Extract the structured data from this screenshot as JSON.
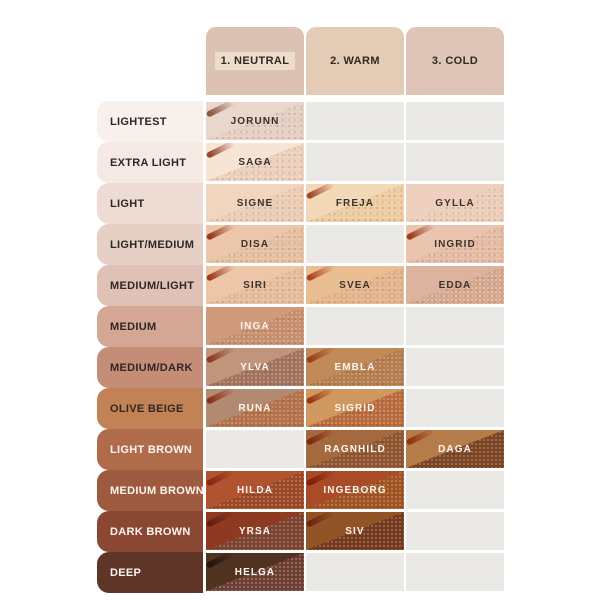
{
  "chart": {
    "columns": [
      {
        "label": "1. NEUTRAL",
        "bg": "#dcc2b3",
        "label_highlight": "#ecdccc"
      },
      {
        "label": "2. WARM",
        "bg": "#e3cbb6",
        "label_highlight": null
      },
      {
        "label": "3. COLD",
        "bg": "#dec5b8",
        "label_highlight": null
      }
    ],
    "empty_cell_color": "#eae9e6",
    "rows": [
      {
        "label": "LIGHTEST",
        "bg": "#f8f0ec",
        "label_color": "#2e2724",
        "cells": [
          {
            "name": "JORUNN",
            "smooth": "#e9d6cd",
            "grain": "#e3cec1",
            "streak": "#8a5a44",
            "name_color": "#352e2b"
          },
          null,
          null
        ]
      },
      {
        "label": "EXTRA LIGHT",
        "bg": "#f6e9e3",
        "label_color": "#2e2724",
        "cells": [
          {
            "name": "SAGA",
            "smooth": "#f6e4d4",
            "grain": "#eccfba",
            "streak": "#94482a",
            "name_color": "#352e2b"
          },
          null,
          null
        ]
      },
      {
        "label": "LIGHT",
        "bg": "#eedcd4",
        "label_color": "#2e2724",
        "cells": [
          {
            "name": "SIGNE",
            "smooth": "#f2d5bd",
            "grain": "#ecccb2",
            "streak": null,
            "name_color": "#3a332e"
          },
          {
            "name": "FREJA",
            "smooth": "#f3d8b8",
            "grain": "#eccb9f",
            "streak": "#a04a28",
            "name_color": "#3a332e"
          },
          {
            "name": "GYLLA",
            "smooth": "#efd0bf",
            "grain": "#ebccb7",
            "streak": null,
            "name_color": "#3a332e"
          }
        ]
      },
      {
        "label": "LIGHT/MEDIUM",
        "bg": "#e6cfc5",
        "label_color": "#2e2724",
        "cells": [
          {
            "name": "DISA",
            "smooth": "#ecc6ab",
            "grain": "#e5bd9f",
            "streak": "#96381e",
            "name_color": "#3a332e"
          },
          null,
          {
            "name": "INGRID",
            "smooth": "#eac4ae",
            "grain": "#e4bba2",
            "streak": "#a03c20",
            "name_color": "#3a332e"
          }
        ]
      },
      {
        "label": "MEDIUM/LIGHT",
        "bg": "#dfc2b5",
        "label_color": "#2e2724",
        "cells": [
          {
            "name": "SIRI",
            "smooth": "#edc6a9",
            "grain": "#e6bc9c",
            "streak": "#a03c1e",
            "name_color": "#3a332e"
          },
          {
            "name": "SVEA",
            "smooth": "#eabe93",
            "grain": "#e3b48a",
            "streak": "#aa4420",
            "name_color": "#3a332e"
          },
          {
            "name": "EDDA",
            "smooth": "#dcb39c",
            "grain": "#d5a98f",
            "streak": null,
            "name_color": "#3a332e"
          }
        ]
      },
      {
        "label": "MEDIUM",
        "bg": "#d4a795",
        "label_color": "#2e2724",
        "cells": [
          {
            "name": "INGA",
            "smooth": "#cf9a7b",
            "grain": "#c78f6e",
            "streak": null,
            "name_color": "#fdf6f0"
          },
          null,
          null
        ]
      },
      {
        "label": "MEDIUM/DARK",
        "bg": "#c68d76",
        "label_color": "#2e2724",
        "cells": [
          {
            "name": "YLVA",
            "smooth": "#c0957c",
            "grain": "#a3745d",
            "streak": "#8c3a22",
            "name_color": "#fdf6f0"
          },
          {
            "name": "EMBLA",
            "smooth": "#c08a59",
            "grain": "#b67d4e",
            "streak": "#9a3c1c",
            "name_color": "#fdf6f0"
          },
          null
        ]
      },
      {
        "label": "OLIVE BEIGE",
        "bg": "#c28255",
        "label_color": "#2e2724",
        "cells": [
          {
            "name": "RUNA",
            "smooth": "#b18a71",
            "grain": "#b4714a",
            "streak": "#8c2f16",
            "name_color": "#fdf6f0"
          },
          {
            "name": "SIGRID",
            "smooth": "#d0985f",
            "grain": "#b96b3e",
            "streak": "#9a3418",
            "name_color": "#fdf6f0"
          },
          null
        ]
      },
      {
        "label": "LIGHT BROWN",
        "bg": "#b06c4a",
        "label_color": "#fdf6f0",
        "cells": [
          null,
          {
            "name": "RAGNHILD",
            "smooth": "#a5693f",
            "grain": "#8f5530",
            "streak": "#7e2a12",
            "name_color": "#fdf6f0"
          },
          {
            "name": "DAGA",
            "smooth": "#b57c49",
            "grain": "#7c4423",
            "streak": "#942f14",
            "name_color": "#fdf6f0"
          }
        ]
      },
      {
        "label": "MEDIUM BROWN",
        "bg": "#9e5a3e",
        "label_color": "#fdf6f0",
        "cells": [
          {
            "name": "HILDA",
            "smooth": "#b25330",
            "grain": "#9c4825",
            "streak": "#8c2412",
            "name_color": "#fdf6f0"
          },
          {
            "name": "INGEBORG",
            "smooth": "#a84b26",
            "grain": "#a15322",
            "streak": "#7e2010",
            "name_color": "#fdf6f0"
          },
          null
        ]
      },
      {
        "label": "DARK BROWN",
        "bg": "#8a4833",
        "label_color": "#fdf6f0",
        "cells": [
          {
            "name": "YRSA",
            "smooth": "#8e3a20",
            "grain": "#7c4330",
            "streak": "#641e10",
            "name_color": "#fdf6f0"
          },
          {
            "name": "SIV",
            "smooth": "#905426",
            "grain": "#753a1e",
            "streak": "#6e2410",
            "name_color": "#fdf6f0"
          },
          null
        ]
      },
      {
        "label": "DEEP",
        "bg": "#5f3528",
        "label_color": "#fdf6f0",
        "cells": [
          {
            "name": "HELGA",
            "smooth": "#4f3320",
            "grain": "#6e4033",
            "streak": "#26140a",
            "name_color": "#fdf6f0"
          },
          null,
          null
        ]
      }
    ]
  },
  "chart_data": {
    "type": "table",
    "title": "Foundation shade chart by depth and undertone",
    "columns": [
      "1. NEUTRAL",
      "2. WARM",
      "3. COLD"
    ],
    "rows": [
      "LIGHTEST",
      "EXTRA LIGHT",
      "LIGHT",
      "LIGHT/MEDIUM",
      "MEDIUM/LIGHT",
      "MEDIUM",
      "MEDIUM/DARK",
      "OLIVE BEIGE",
      "LIGHT BROWN",
      "MEDIUM BROWN",
      "DARK BROWN",
      "DEEP"
    ],
    "cells": [
      [
        "JORUNN",
        null,
        null
      ],
      [
        "SAGA",
        null,
        null
      ],
      [
        "SIGNE",
        "FREJA",
        "GYLLA"
      ],
      [
        "DISA",
        null,
        "INGRID"
      ],
      [
        "SIRI",
        "SVEA",
        "EDDA"
      ],
      [
        "INGA",
        null,
        null
      ],
      [
        "YLVA",
        "EMBLA",
        null
      ],
      [
        "RUNA",
        "SIGRID",
        null
      ],
      [
        null,
        "RAGNHILD",
        "DAGA"
      ],
      [
        "HILDA",
        "INGEBORG",
        null
      ],
      [
        "YRSA",
        "SIV",
        null
      ],
      [
        "HELGA",
        null,
        null
      ]
    ],
    "legend_position": "none",
    "grid": true
  }
}
